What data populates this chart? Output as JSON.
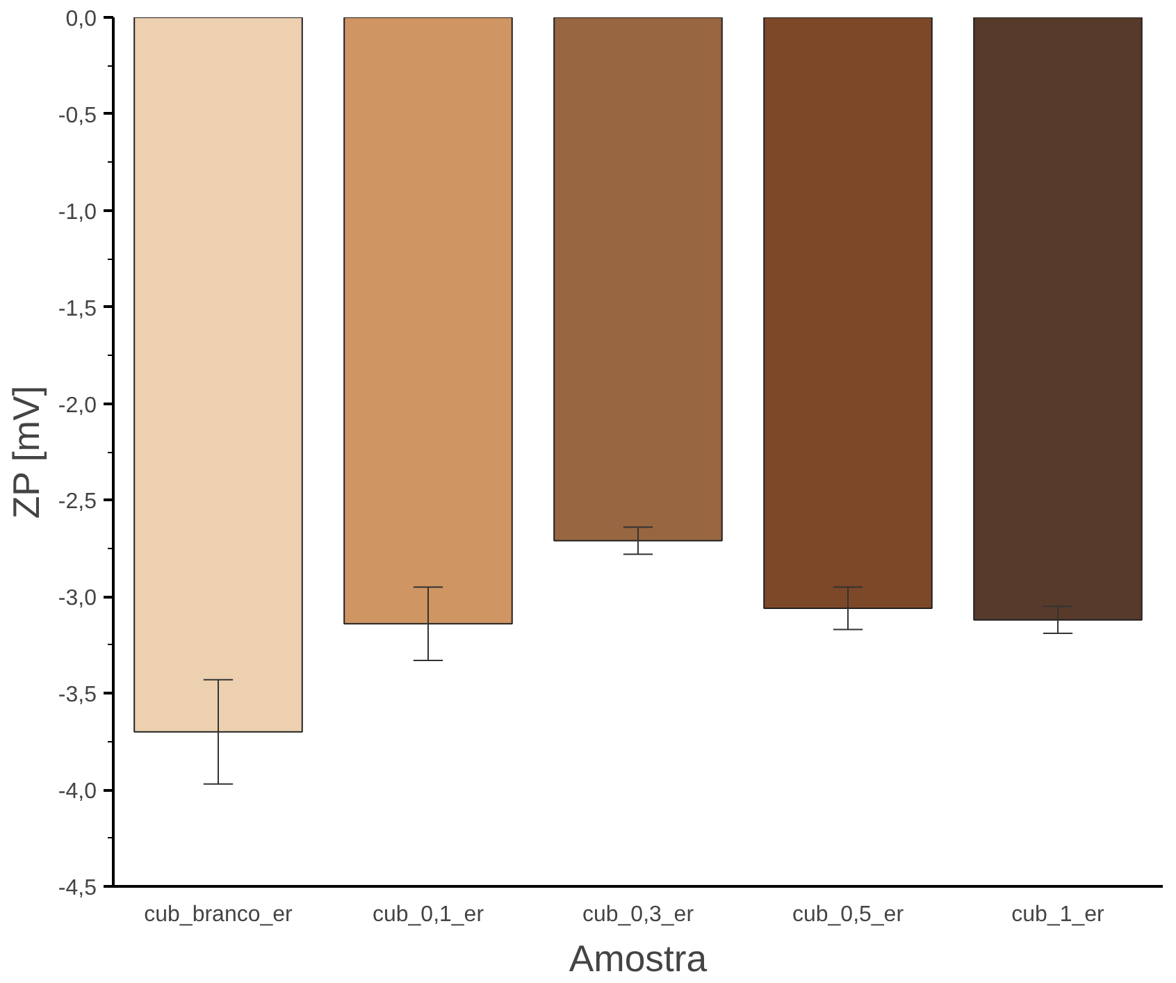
{
  "chart_data": {
    "type": "bar",
    "xlabel": "Amostra",
    "ylabel": "ZP [mV]",
    "categories": [
      "cub_branco_er",
      "cub_0,1_er",
      "cub_0,3_er",
      "cub_0,5_er",
      "cub_1_er"
    ],
    "values": [
      -3.7,
      -3.14,
      -2.71,
      -3.06,
      -3.12
    ],
    "errors": [
      0.27,
      0.19,
      0.07,
      0.11,
      0.07
    ],
    "colors": [
      "#edd0b0",
      "#cf9563",
      "#986641",
      "#7d4828",
      "#573a2a"
    ],
    "ylim": [
      -4.5,
      0
    ],
    "yticks": [
      {
        "value": -4.5,
        "label": "-4,5"
      },
      {
        "value": -4.0,
        "label": "-4,0"
      },
      {
        "value": -3.5,
        "label": "-3,5"
      },
      {
        "value": -3.0,
        "label": "-3,0"
      },
      {
        "value": -2.5,
        "label": "-2,5"
      },
      {
        "value": -2.0,
        "label": "-2,0"
      },
      {
        "value": -1.5,
        "label": "-1,5"
      },
      {
        "value": -1.0,
        "label": "-1,0"
      },
      {
        "value": -0.5,
        "label": "-0,5"
      },
      {
        "value": 0.0,
        "label": "0,0"
      }
    ],
    "grid": false
  }
}
